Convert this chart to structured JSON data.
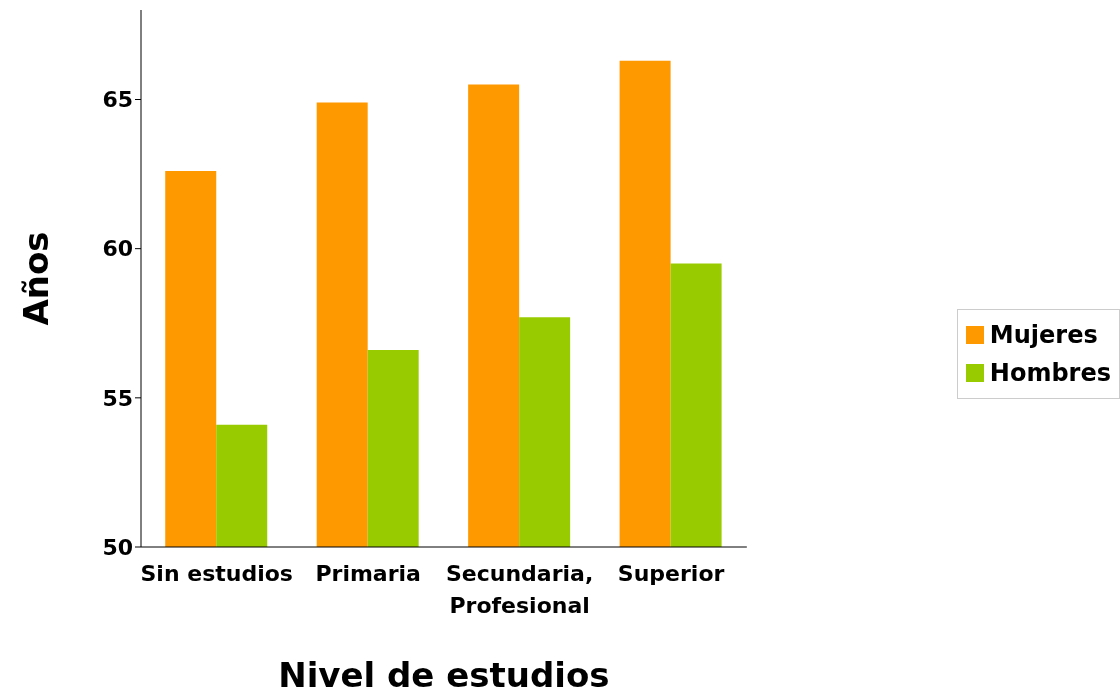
{
  "chart_data": {
    "type": "bar",
    "xlabel": "Nivel de estudios",
    "ylabel": "Años",
    "categories": [
      "Sin estudios",
      "Primaria",
      "Secundaria, Profesional",
      "Superior"
    ],
    "series": [
      {
        "name": "Mujeres",
        "color": "#ff9900",
        "values": [
          62.6,
          64.9,
          65.5,
          66.3
        ]
      },
      {
        "name": "Hombres",
        "color": "#99cc00",
        "values": [
          54.1,
          56.6,
          57.7,
          59.5
        ]
      }
    ],
    "ylim": [
      50,
      68
    ],
    "yticks": [
      50,
      55,
      60,
      65
    ],
    "grid": false,
    "legend": "right"
  }
}
